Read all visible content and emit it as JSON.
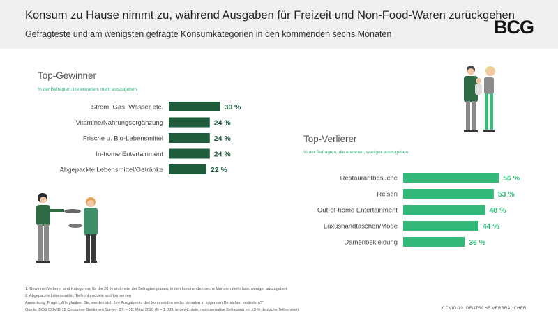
{
  "header": {
    "title": "Konsum zu Hause nimmt zu, während Ausgaben für Freizeit und Non-Food-Waren zurückgehen",
    "subtitle": "Gefragteste und am wenigsten gefragte Konsumkategorien in den kommenden sechs Monaten",
    "logo": "BCG"
  },
  "chart_data": [
    {
      "type": "bar",
      "orientation": "horizontal",
      "title": "Top-Gewinner",
      "subtitle": "% der Befragten, die erwarten, mehr auszugeben",
      "categories": [
        "Strom, Gas, Wasser etc.",
        "Vitamine/Nahrungsergänzung",
        "Frische u. Bio-Lebensmittel",
        "In-home Entertainment",
        "Abgepackte Lebensmittel/Getränke"
      ],
      "values": [
        30,
        24,
        24,
        24,
        22
      ],
      "value_labels": [
        "30 %",
        "24 %",
        "24 %",
        "24 %",
        "22 %"
      ],
      "color": "#1e5c3c"
    },
    {
      "type": "bar",
      "orientation": "horizontal",
      "title": "Top-Verlierer",
      "subtitle": "% der Befragten, die erwarten, weniger auszugeben",
      "categories": [
        "Restaurantbesuche",
        "Reisen",
        "Out-of-home Entertainment",
        "Luxushandtaschen/Mode",
        "Damenbekleidung"
      ],
      "values": [
        56,
        53,
        48,
        44,
        36
      ],
      "value_labels": [
        "56 %",
        "53 %",
        "48 %",
        "44 %",
        "36 %"
      ],
      "color": "#32b878"
    }
  ],
  "footnotes": [
    "1. Gewinner/Verlierer sind Kategorien, für die 20 % und mehr der Befragten planen, in den kommenden sechs Monaten mehr bzw. weniger auszugeben",
    "2. Abgepackte Lebensmittel, Tiefkühlprodukte und Konserven",
    "Anmerkung: Frage: „Wie glauben Sie, werden sich Ihre Ausgaben in den kommenden sechs Monaten in folgenden Bereichen verändern?“",
    "Quelle: BCG COVID-19 Consumer Sentiment Survey, 27. – 30. März 2020 (N = 1.083, ungewichtete, repräsentative Befragung mit ±3 % deutsche Teilnehmer)"
  ],
  "footer_right": "COVID-19: DEUTSCHE VERBRAUCHER"
}
